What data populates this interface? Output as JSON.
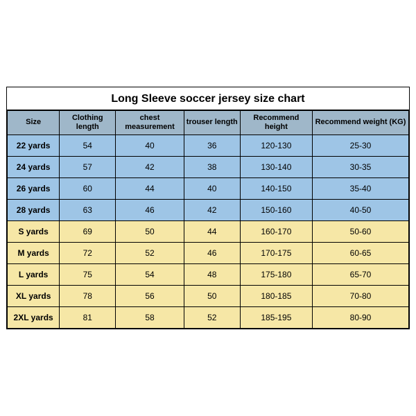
{
  "table": {
    "title": "Long Sleeve soccer jersey size chart",
    "columns": [
      "Size",
      "Clothing length",
      "chest measurement",
      "trouser length",
      "Recommend height",
      "Recommend weight (KG)"
    ],
    "groups": [
      {
        "tone": "blue",
        "rows": [
          {
            "size": "22 yards",
            "clothing_length": "54",
            "chest": "40",
            "trouser": "36",
            "height": "120-130",
            "weight": "25-30"
          },
          {
            "size": "24 yards",
            "clothing_length": "57",
            "chest": "42",
            "trouser": "38",
            "height": "130-140",
            "weight": "30-35"
          },
          {
            "size": "26 yards",
            "clothing_length": "60",
            "chest": "44",
            "trouser": "40",
            "height": "140-150",
            "weight": "35-40"
          },
          {
            "size": "28 yards",
            "clothing_length": "63",
            "chest": "46",
            "trouser": "42",
            "height": "150-160",
            "weight": "40-50"
          }
        ]
      },
      {
        "tone": "yellow",
        "rows": [
          {
            "size": "S yards",
            "clothing_length": "69",
            "chest": "50",
            "trouser": "44",
            "height": "160-170",
            "weight": "50-60"
          },
          {
            "size": "M yards",
            "clothing_length": "72",
            "chest": "52",
            "trouser": "46",
            "height": "170-175",
            "weight": "60-65"
          },
          {
            "size": "L yards",
            "clothing_length": "75",
            "chest": "54",
            "trouser": "48",
            "height": "175-180",
            "weight": "65-70"
          },
          {
            "size": "XL yards",
            "clothing_length": "78",
            "chest": "56",
            "trouser": "50",
            "height": "180-185",
            "weight": "70-80"
          },
          {
            "size": "2XL yards",
            "clothing_length": "81",
            "chest": "58",
            "trouser": "52",
            "height": "185-195",
            "weight": "80-90"
          }
        ]
      }
    ],
    "colors": {
      "header_bg": "#9fb7c9",
      "blue_bg": "#9ec5e6",
      "yellow_bg": "#f6e7a6",
      "border": "#000000",
      "page_bg": "#ffffff"
    }
  }
}
